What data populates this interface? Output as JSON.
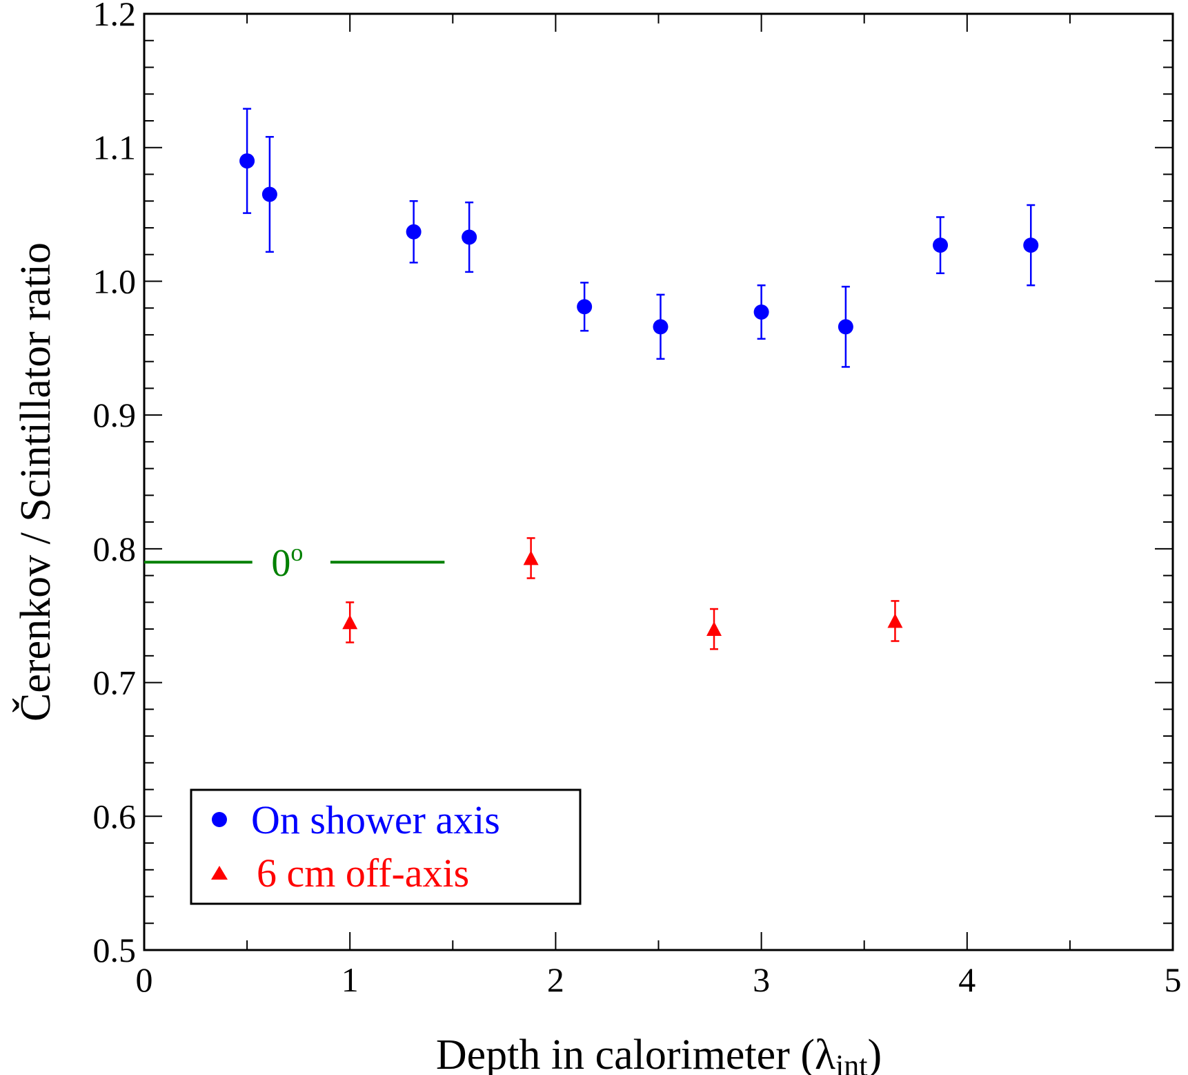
{
  "chart_data": {
    "type": "scatter",
    "xlabel": "Depth in calorimeter (λ",
    "xlabel_sub": "int",
    "xlabel_close": ")",
    "ylabel": "Čerenkov / Scintillator ratio",
    "xlim": [
      0,
      5
    ],
    "ylim": [
      0.5,
      1.2
    ],
    "x_ticks": [
      "0",
      "1",
      "2",
      "3",
      "4",
      "5"
    ],
    "y_ticks": [
      "0.5",
      "0.6",
      "0.7",
      "0.8",
      "0.9",
      "1.0",
      "1.1",
      "1.2"
    ],
    "grid": false,
    "legend_position": "bottom-left",
    "series": [
      {
        "name": "On shower axis",
        "color": "#0000ff",
        "marker": "circle",
        "points": [
          {
            "x": 0.5,
            "y": 1.09,
            "err": 0.039
          },
          {
            "x": 0.61,
            "y": 1.065,
            "err": 0.043
          },
          {
            "x": 1.31,
            "y": 1.037,
            "err": 0.023
          },
          {
            "x": 1.58,
            "y": 1.033,
            "err": 0.026
          },
          {
            "x": 2.14,
            "y": 0.981,
            "err": 0.018
          },
          {
            "x": 2.51,
            "y": 0.966,
            "err": 0.024
          },
          {
            "x": 3.0,
            "y": 0.977,
            "err": 0.02
          },
          {
            "x": 3.41,
            "y": 0.966,
            "err": 0.03
          },
          {
            "x": 3.87,
            "y": 1.027,
            "err": 0.021
          },
          {
            "x": 4.31,
            "y": 1.027,
            "err": 0.03
          }
        ]
      },
      {
        "name": "6 cm off-axis",
        "color": "#ff0000",
        "marker": "triangle",
        "points": [
          {
            "x": 1.0,
            "y": 0.745,
            "err": 0.015
          },
          {
            "x": 1.88,
            "y": 0.793,
            "err": 0.015
          },
          {
            "x": 2.77,
            "y": 0.74,
            "err": 0.015
          },
          {
            "x": 3.65,
            "y": 0.746,
            "err": 0.015
          }
        ]
      }
    ],
    "reference_line": {
      "label": "0",
      "label_sup": "o",
      "y": 0.79,
      "x_start": 0,
      "x_end": 1.46,
      "color": "#008000"
    }
  }
}
